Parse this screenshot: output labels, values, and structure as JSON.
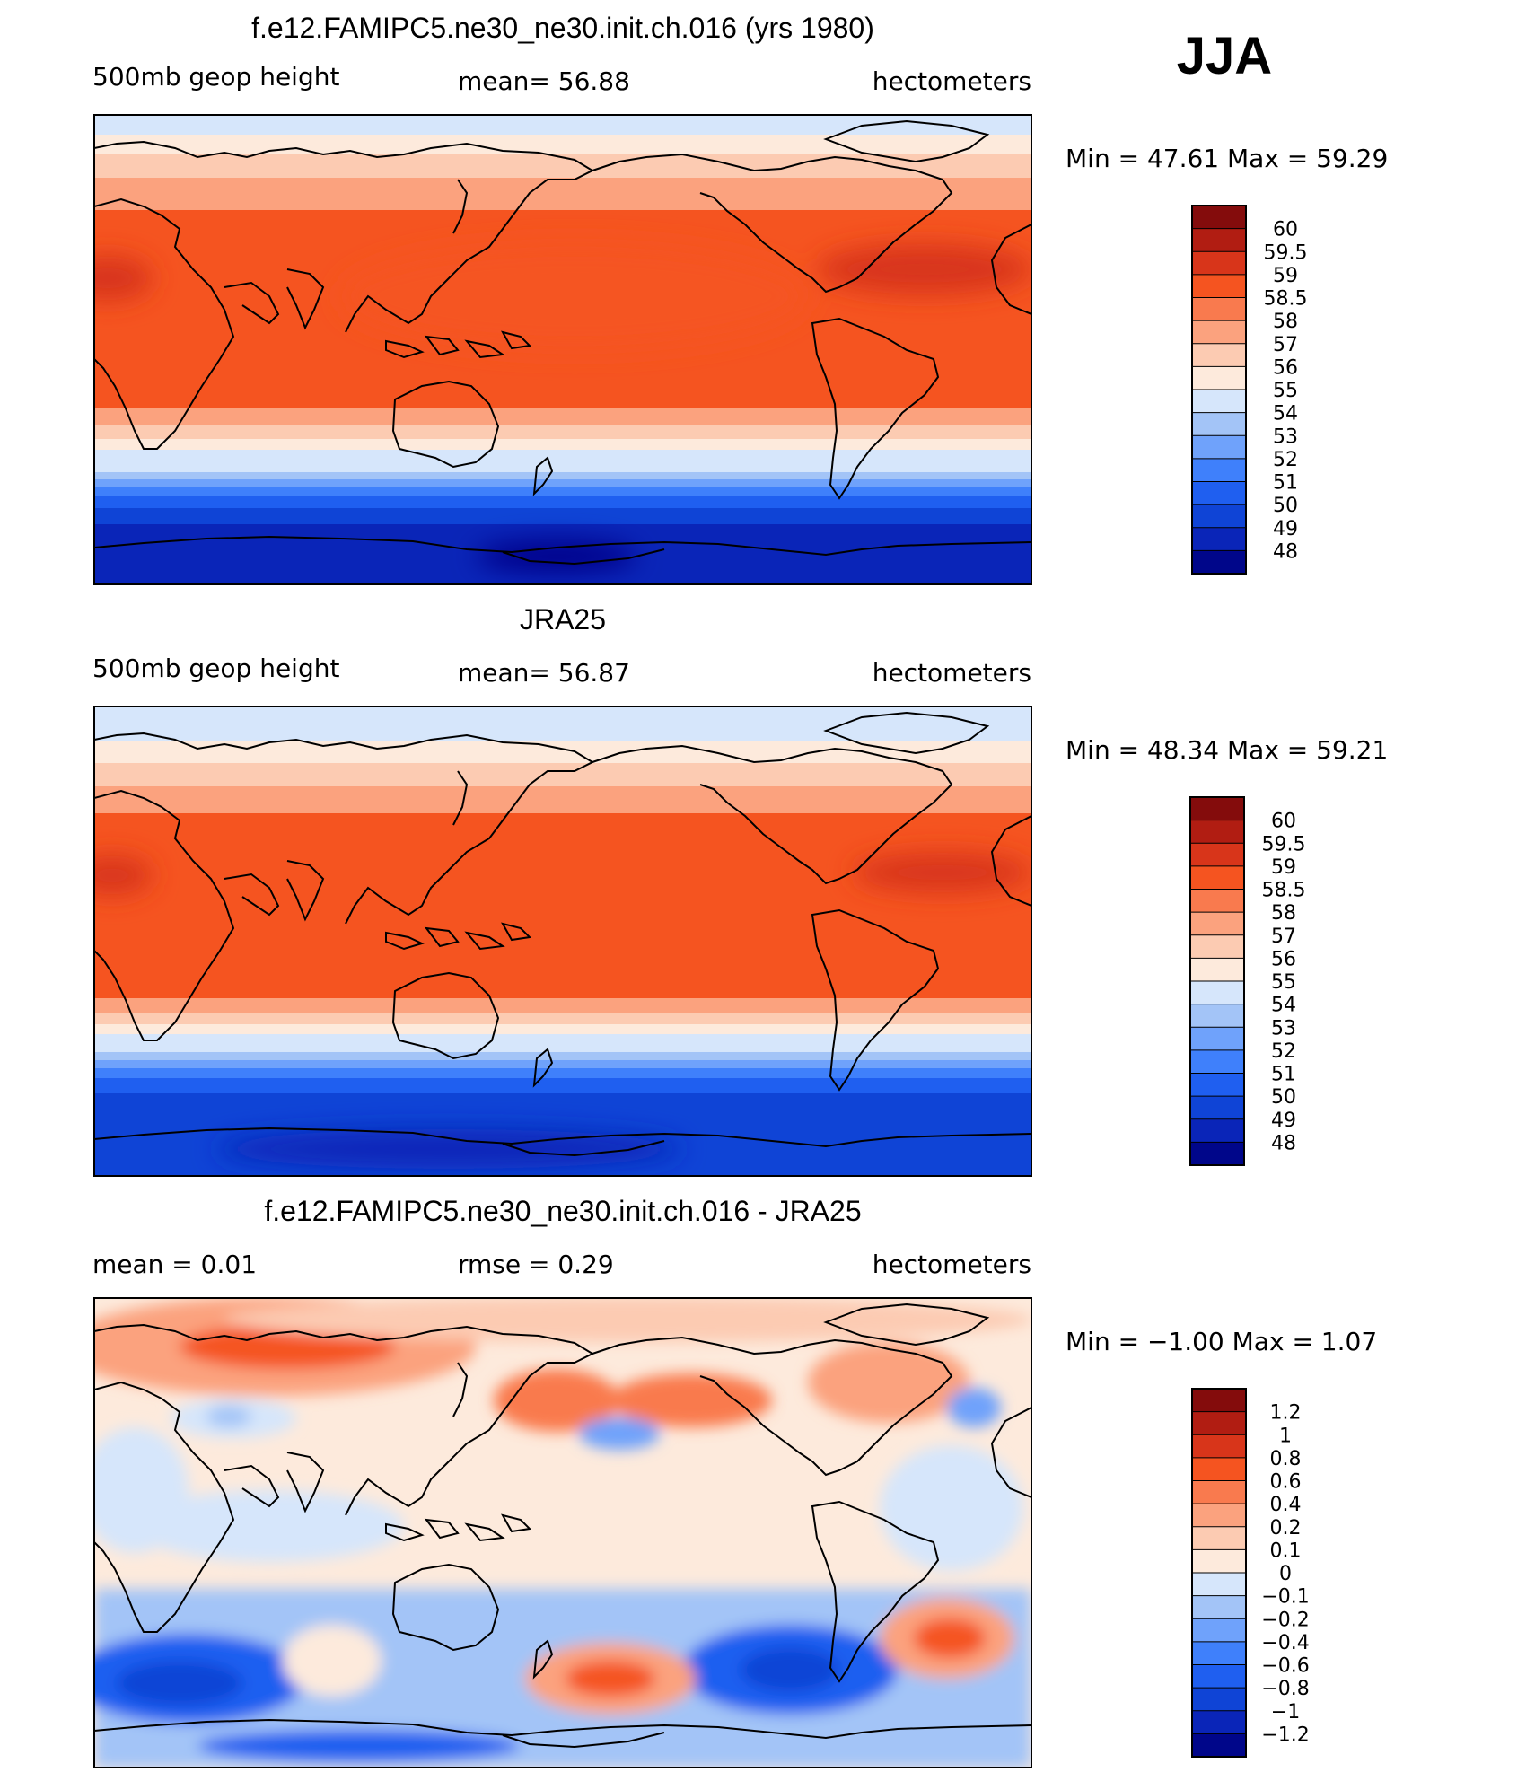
{
  "season": "JJA",
  "colors": {
    "abs_scale": [
      "#00068a",
      "#0a25b8",
      "#0f44d6",
      "#1f5ff0",
      "#3f80fb",
      "#6fa2fb",
      "#a3c4f7",
      "#d6e6fb",
      "#fdeadc",
      "#fccbb2",
      "#fba27e",
      "#f97a4e",
      "#f55420",
      "#d8351a",
      "#b11d12",
      "#840c0c"
    ],
    "diff_scale": [
      "#00068a",
      "#0a25b8",
      "#0f44d6",
      "#1f5ff0",
      "#3f80fb",
      "#6fa2fb",
      "#a3c4f7",
      "#d6e6fb",
      "#fdeadc",
      "#fccbb2",
      "#fba27e",
      "#f97a4e",
      "#f55420",
      "#d8351a",
      "#b11d12",
      "#840c0c"
    ]
  },
  "panels": [
    {
      "title": "f.e12.FAMIPC5.ne30_ne30.init.ch.016 (yrs 1980)",
      "left_label": "500mb  geop  height",
      "center_label": "mean=   56.88",
      "right_label": "hectometers",
      "stats": "Min  =    47.61  Max  =    59.29",
      "colorbar_labels": [
        "60",
        "59.5",
        "59",
        "58.5",
        "58",
        "57",
        "56",
        "55",
        "54",
        "53",
        "52",
        "51",
        "50",
        "49",
        "48"
      ]
    },
    {
      "title": "JRA25",
      "left_label": "500mb  geop  height",
      "center_label": "mean=   56.87",
      "right_label": "hectometers",
      "stats": "Min  =    48.34  Max  =    59.21",
      "colorbar_labels": [
        "60",
        "59.5",
        "59",
        "58.5",
        "58",
        "57",
        "56",
        "55",
        "54",
        "53",
        "52",
        "51",
        "50",
        "49",
        "48"
      ]
    },
    {
      "title": "f.e12.FAMIPC5.ne30_ne30.init.ch.016 - JRA25",
      "left_label": "mean  =      0.01",
      "center_label": "rmse  =      0.29",
      "right_label": "hectometers",
      "stats": "Min  =    −1.00  Max  =       1.07",
      "colorbar_labels": [
        "1.2",
        "1",
        "0.8",
        "0.6",
        "0.4",
        "0.2",
        "0.1",
        "0",
        "−0.1",
        "−0.2",
        "−0.4",
        "−0.6",
        "−0.8",
        "−1",
        "−1.2"
      ]
    }
  ],
  "chart_data": [
    {
      "type": "heatmap",
      "title": "f.e12.FAMIPC5.ne30_ne30.init.ch.016 (yrs 1980)",
      "variable": "500mb geop height",
      "units": "hectometers",
      "mean": 56.88,
      "min": 47.61,
      "max": 59.29,
      "levels": [
        48,
        49,
        50,
        51,
        52,
        53,
        54,
        55,
        56,
        57,
        58,
        58.5,
        59,
        59.5,
        60
      ]
    },
    {
      "type": "heatmap",
      "title": "JRA25",
      "variable": "500mb geop height",
      "units": "hectometers",
      "mean": 56.87,
      "min": 48.34,
      "max": 59.21,
      "levels": [
        48,
        49,
        50,
        51,
        52,
        53,
        54,
        55,
        56,
        57,
        58,
        58.5,
        59,
        59.5,
        60
      ]
    },
    {
      "type": "heatmap",
      "title": "f.e12.FAMIPC5.ne30_ne30.init.ch.016 - JRA25",
      "variable": "500mb geop height difference",
      "units": "hectometers",
      "mean": 0.01,
      "rmse": 0.29,
      "min": -1.0,
      "max": 1.07,
      "levels": [
        -1.2,
        -1,
        -0.8,
        -0.6,
        -0.4,
        -0.2,
        -0.1,
        0,
        0.1,
        0.2,
        0.4,
        0.6,
        0.8,
        1,
        1.2
      ]
    }
  ]
}
